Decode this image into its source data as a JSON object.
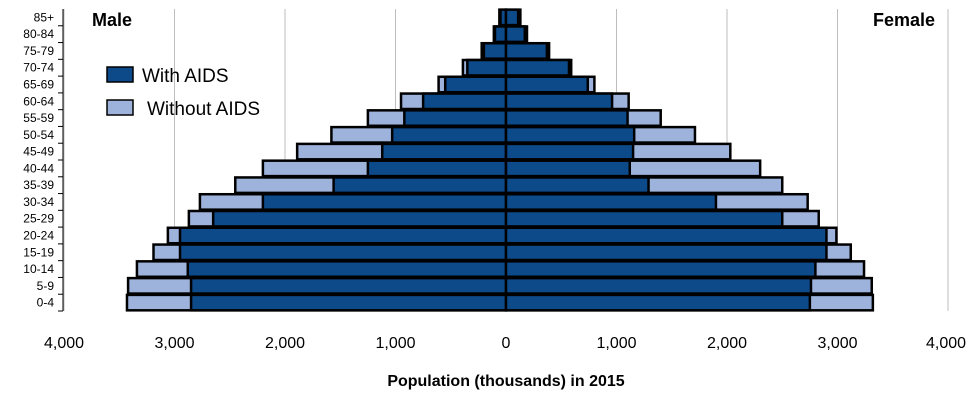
{
  "chart_data": {
    "type": "bar",
    "orientation": "horizontal",
    "subtype": "population-pyramid",
    "categories": [
      "0-4",
      "5-9",
      "10-14",
      "15-19",
      "20-24",
      "25-29",
      "30-34",
      "35-39",
      "40-44",
      "45-49",
      "50-54",
      "55-59",
      "60-64",
      "65-69",
      "70-74",
      "75-79",
      "80-84",
      "85+"
    ],
    "left_label": "Male",
    "right_label": "Female",
    "xlabel": "Population (thousands) in 2015",
    "xlim": [
      -4000,
      4000
    ],
    "xticks": [
      -4000,
      -3000,
      -2000,
      -1000,
      0,
      1000,
      2000,
      3000,
      4000
    ],
    "xtick_labels": [
      "4,000",
      "3,000",
      "2,000",
      "1,000",
      "0",
      "1,000",
      "2,000",
      "3,000",
      "4,000"
    ],
    "grid": "vertical",
    "legend_position": "top-left",
    "series": [
      {
        "name": "With AIDS",
        "color": "#0d4a8a",
        "male": [
          2850,
          2850,
          2880,
          2950,
          2950,
          2650,
          2200,
          1560,
          1250,
          1120,
          1030,
          920,
          750,
          550,
          350,
          200,
          100,
          50
        ],
        "female": [
          2750,
          2760,
          2800,
          2900,
          2900,
          2500,
          1900,
          1290,
          1120,
          1150,
          1160,
          1100,
          960,
          740,
          570,
          370,
          170,
          110
        ]
      },
      {
        "name": "Without AIDS",
        "color": "#9eb3dc",
        "male": [
          3430,
          3420,
          3340,
          3190,
          3060,
          2870,
          2770,
          2450,
          2200,
          1890,
          1580,
          1250,
          950,
          610,
          390,
          220,
          110,
          60
        ],
        "female": [
          3320,
          3310,
          3240,
          3120,
          2990,
          2830,
          2730,
          2500,
          2300,
          2030,
          1710,
          1400,
          1110,
          800,
          590,
          390,
          190,
          130
        ]
      }
    ]
  }
}
